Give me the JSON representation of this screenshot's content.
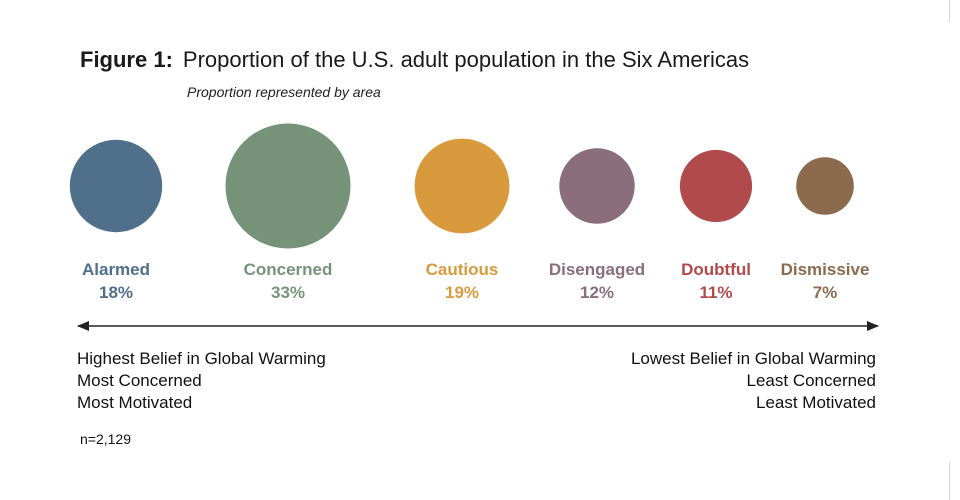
{
  "figure": {
    "label": "Figure 1:",
    "title": "Proportion of the U.S. adult population in the Six Americas",
    "subtitle": "Proportion represented by area"
  },
  "chart_data": {
    "type": "bubble",
    "encoding": "area",
    "categories": [
      "Alarmed",
      "Concerned",
      "Cautious",
      "Disengaged",
      "Doubtful",
      "Dismissive"
    ],
    "values": [
      18,
      33,
      19,
      12,
      11,
      7
    ],
    "value_labels": [
      "18%",
      "33%",
      "19%",
      "12%",
      "11%",
      "7%"
    ],
    "colors": [
      "#506f8a",
      "#76937a",
      "#d99a3e",
      "#8a6e7c",
      "#b04a4c",
      "#8c6a4e"
    ]
  },
  "axis": {
    "left": {
      "lines": [
        "Highest Belief in Global Warming",
        "Most Concerned",
        "Most Motivated"
      ]
    },
    "right": {
      "lines": [
        "Lowest Belief in Global Warming",
        "Least Concerned",
        "Least Motivated"
      ]
    }
  },
  "sample_note": "n=2,129"
}
